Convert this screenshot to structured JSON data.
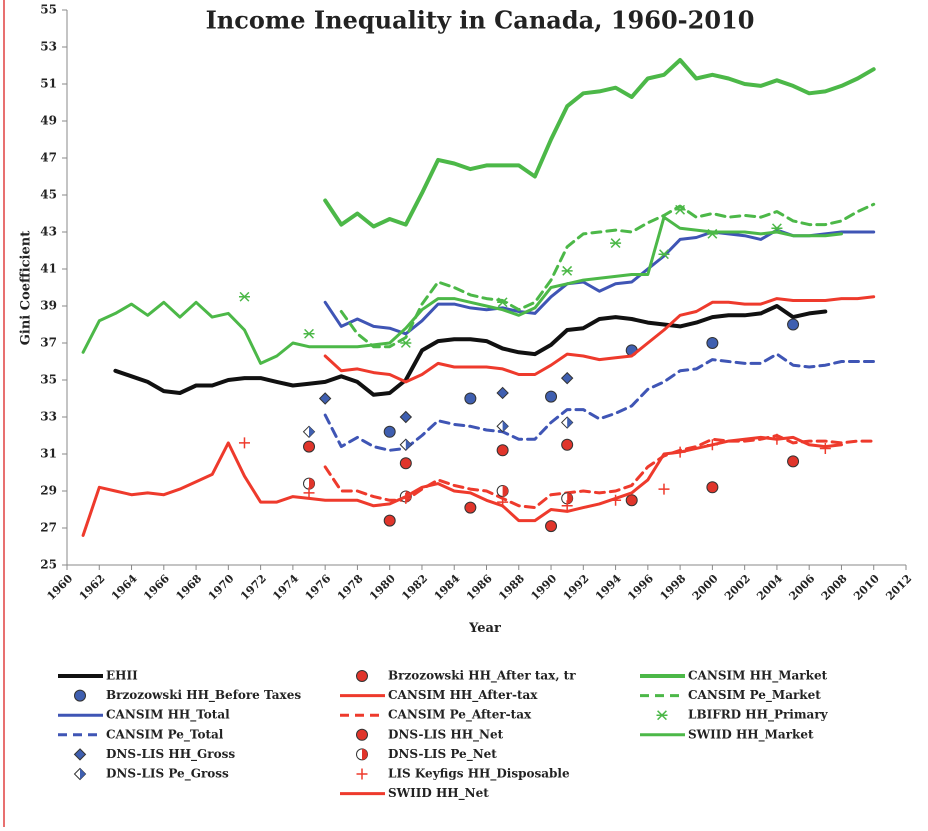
{
  "chart_data": {
    "type": "line",
    "title": "Income Inequality in Canada, 1960-2010",
    "x_label": "Year",
    "y_label": "Gini Coefficient",
    "xlim": [
      1960,
      2012
    ],
    "ylim": [
      25,
      55
    ],
    "xticks": [
      1960,
      1962,
      1964,
      1966,
      1968,
      1970,
      1972,
      1974,
      1976,
      1978,
      1980,
      1982,
      1984,
      1986,
      1988,
      1990,
      1992,
      1994,
      1996,
      1998,
      2000,
      2002,
      2004,
      2006,
      2008,
      2010,
      2012
    ],
    "yticks": [
      25,
      27,
      29,
      31,
      33,
      35,
      37,
      39,
      41,
      43,
      45,
      47,
      49,
      51,
      53,
      55
    ],
    "series": [
      {
        "name": "EHII",
        "color": "#111111",
        "style": "line",
        "width": 4,
        "x": [
          1963,
          1964,
          1965,
          1966,
          1967,
          1968,
          1969,
          1970,
          1971,
          1972,
          1973,
          1974,
          1975,
          1976,
          1977,
          1978,
          1979,
          1980,
          1981,
          1982,
          1983,
          1984,
          1985,
          1986,
          1987,
          1988,
          1989,
          1990,
          1991,
          1992,
          1993,
          1994,
          1995,
          1996,
          1997,
          1998,
          1999,
          2000,
          2001,
          2002,
          2003,
          2004,
          2005,
          2006,
          2007
        ],
        "values": [
          35.5,
          35.2,
          34.9,
          34.4,
          34.3,
          34.7,
          34.7,
          35.0,
          35.1,
          35.1,
          34.9,
          34.7,
          34.8,
          34.9,
          35.2,
          34.9,
          34.2,
          34.3,
          35.0,
          36.6,
          37.1,
          37.2,
          37.2,
          37.1,
          36.7,
          36.5,
          36.4,
          36.9,
          37.7,
          37.8,
          38.3,
          38.4,
          38.3,
          38.1,
          38.0,
          37.9,
          38.1,
          38.4,
          38.5,
          38.5,
          38.6,
          39.0,
          38.4,
          38.6,
          38.7
        ]
      },
      {
        "name": "Brzozowski HH_Before Taxes",
        "color": "#3f5fb0",
        "style": "marker",
        "marker": "circle",
        "x": [
          1980,
          1985,
          1990,
          1995,
          2000,
          2005
        ],
        "values": [
          32.2,
          34.0,
          34.1,
          36.6,
          37.0,
          38.0
        ]
      },
      {
        "name": "CANSIM HH_Total",
        "color": "#3f55b5",
        "style": "line",
        "width": 3,
        "x": [
          1976,
          1977,
          1978,
          1979,
          1980,
          1981,
          1982,
          1983,
          1984,
          1985,
          1986,
          1987,
          1988,
          1989,
          1990,
          1991,
          1992,
          1993,
          1994,
          1995,
          1996,
          1997,
          1998,
          1999,
          2000,
          2001,
          2002,
          2003,
          2004,
          2005,
          2006,
          2007,
          2008,
          2009,
          2010
        ],
        "values": [
          39.2,
          37.9,
          38.3,
          37.9,
          37.8,
          37.5,
          38.2,
          39.1,
          39.1,
          38.9,
          38.8,
          38.9,
          38.7,
          38.6,
          39.5,
          40.2,
          40.3,
          39.8,
          40.2,
          40.3,
          41.0,
          41.7,
          42.6,
          42.7,
          43.0,
          42.9,
          42.8,
          42.6,
          43.1,
          42.8,
          42.8,
          42.9,
          43.0,
          43.0,
          43.0
        ]
      },
      {
        "name": "CANSIM Pe_Total",
        "color": "#3f55b5",
        "style": "dashed",
        "width": 3,
        "x": [
          1976,
          1977,
          1978,
          1979,
          1980,
          1981,
          1982,
          1983,
          1984,
          1985,
          1986,
          1987,
          1988,
          1989,
          1990,
          1991,
          1992,
          1993,
          1994,
          1995,
          1996,
          1997,
          1998,
          1999,
          2000,
          2001,
          2002,
          2003,
          2004,
          2005,
          2006,
          2007,
          2008,
          2009,
          2010
        ],
        "values": [
          33.1,
          31.4,
          31.9,
          31.4,
          31.2,
          31.3,
          32.0,
          32.8,
          32.6,
          32.5,
          32.3,
          32.2,
          31.8,
          31.8,
          32.7,
          33.4,
          33.4,
          32.9,
          33.2,
          33.6,
          34.5,
          34.9,
          35.5,
          35.6,
          36.1,
          36.0,
          35.9,
          35.9,
          36.4,
          35.8,
          35.7,
          35.8,
          36.0,
          36.0,
          36.0
        ]
      },
      {
        "name": "DNS-LIS HH_Gross",
        "color": "#3f5fb0",
        "style": "marker",
        "marker": "diamond",
        "x": [
          1976,
          1981,
          1987,
          1991
        ],
        "values": [
          34.0,
          33.0,
          34.3,
          35.1
        ]
      },
      {
        "name": "DNS-LIS Pe_Gross",
        "color": "#3f5fb0",
        "style": "marker",
        "marker": "half-diamond",
        "x": [
          1975,
          1981,
          1987,
          1991
        ],
        "values": [
          32.2,
          31.5,
          32.5,
          32.7
        ]
      },
      {
        "name": "Brzozowski HH_After tax, tr",
        "color": "#e0352b",
        "style": "marker",
        "marker": "circle",
        "x": [
          1980,
          1985,
          1990,
          1995,
          2000,
          2005
        ],
        "values": [
          27.4,
          28.1,
          27.1,
          28.5,
          29.2,
          30.6
        ]
      },
      {
        "name": "CANSIM HH_After-tax",
        "color": "#ee3a2c",
        "style": "line",
        "width": 3,
        "x": [
          1976,
          1977,
          1978,
          1979,
          1980,
          1981,
          1982,
          1983,
          1984,
          1985,
          1986,
          1987,
          1988,
          1989,
          1990,
          1991,
          1992,
          1993,
          1994,
          1995,
          1996,
          1997,
          1998,
          1999,
          2000,
          2001,
          2002,
          2003,
          2004,
          2005,
          2006,
          2007,
          2008,
          2009,
          2010
        ],
        "values": [
          36.3,
          35.5,
          35.6,
          35.4,
          35.3,
          34.9,
          35.3,
          35.9,
          35.7,
          35.7,
          35.7,
          35.6,
          35.3,
          35.3,
          35.8,
          36.4,
          36.3,
          36.1,
          36.2,
          36.3,
          37.0,
          37.7,
          38.5,
          38.7,
          39.2,
          39.2,
          39.1,
          39.1,
          39.4,
          39.3,
          39.3,
          39.3,
          39.4,
          39.4,
          39.5
        ]
      },
      {
        "name": "CANSIM Pe_After-tax",
        "color": "#ee3a2c",
        "style": "dashed",
        "width": 3,
        "x": [
          1976,
          1977,
          1978,
          1979,
          1980,
          1981,
          1982,
          1983,
          1984,
          1985,
          1986,
          1987,
          1988,
          1989,
          1990,
          1991,
          1992,
          1993,
          1994,
          1995,
          1996,
          1997,
          1998,
          1999,
          2000,
          2001,
          2002,
          2003,
          2004,
          2005,
          2006,
          2007,
          2008,
          2009,
          2010
        ],
        "values": [
          30.3,
          29.0,
          29.0,
          28.7,
          28.5,
          28.5,
          29.1,
          29.6,
          29.3,
          29.1,
          29.0,
          28.6,
          28.2,
          28.1,
          28.8,
          28.9,
          29.0,
          28.9,
          29.0,
          29.3,
          30.3,
          30.9,
          31.2,
          31.4,
          31.8,
          31.7,
          31.7,
          31.8,
          32.0,
          31.6,
          31.7,
          31.7,
          31.6,
          31.7,
          31.7
        ]
      },
      {
        "name": "DNS-LIS HH_Net",
        "color": "#e0352b",
        "style": "marker",
        "marker": "diamond-circle",
        "x": [
          1975,
          1981,
          1987,
          1991
        ],
        "values": [
          31.4,
          30.5,
          31.2,
          31.5
        ]
      },
      {
        "name": "DNS-LIS Pe_Net",
        "color": "#e0352b",
        "style": "marker",
        "marker": "half-circle",
        "x": [
          1975,
          1981,
          1987,
          1991
        ],
        "values": [
          29.4,
          28.7,
          29.0,
          28.6
        ]
      },
      {
        "name": "LIS Keyfigs HH_Disposable",
        "color": "#ee3a2c",
        "style": "marker",
        "marker": "plus",
        "x": [
          1971,
          1975,
          1981,
          1987,
          1991,
          1994,
          1997,
          1998,
          2000,
          2004,
          2007
        ],
        "values": [
          31.6,
          28.9,
          28.6,
          28.4,
          28.2,
          28.5,
          29.1,
          31.1,
          31.5,
          31.8,
          31.3
        ]
      },
      {
        "name": "SWIID HH_Net",
        "color": "#ee3a2c",
        "style": "line",
        "width": 3,
        "x": [
          1961,
          1962,
          1963,
          1964,
          1965,
          1966,
          1967,
          1968,
          1969,
          1970,
          1971,
          1972,
          1973,
          1974,
          1975,
          1976,
          1977,
          1978,
          1979,
          1980,
          1981,
          1982,
          1983,
          1984,
          1985,
          1986,
          1987,
          1988,
          1989,
          1990,
          1991,
          1992,
          1993,
          1994,
          1995,
          1996,
          1997,
          1998,
          1999,
          2000,
          2001,
          2002,
          2003,
          2004,
          2005,
          2006,
          2007,
          2008
        ],
        "values": [
          26.6,
          29.2,
          29.0,
          28.8,
          28.9,
          28.8,
          29.1,
          29.5,
          29.9,
          31.6,
          29.8,
          28.4,
          28.4,
          28.7,
          28.6,
          28.5,
          28.5,
          28.5,
          28.2,
          28.3,
          28.7,
          29.2,
          29.4,
          29.0,
          28.9,
          28.5,
          28.2,
          27.4,
          27.4,
          28.0,
          27.9,
          28.1,
          28.3,
          28.6,
          28.9,
          29.6,
          31.0,
          31.1,
          31.3,
          31.5,
          31.7,
          31.8,
          31.9,
          31.8,
          31.9,
          31.5,
          31.4,
          31.5
        ]
      },
      {
        "name": "CANSIM HH_Market",
        "color": "#4cb848",
        "style": "line",
        "width": 4,
        "x": [
          1976,
          1977,
          1978,
          1979,
          1980,
          1981,
          1982,
          1983,
          1984,
          1985,
          1986,
          1987,
          1988,
          1989,
          1990,
          1991,
          1992,
          1993,
          1994,
          1995,
          1996,
          1997,
          1998,
          1999,
          2000,
          2001,
          2002,
          2003,
          2004,
          2005,
          2006,
          2007,
          2008,
          2009,
          2010
        ],
        "values": [
          44.7,
          43.4,
          44.0,
          43.3,
          43.7,
          43.4,
          45.1,
          46.9,
          46.7,
          46.4,
          46.6,
          46.6,
          46.6,
          46.0,
          48.0,
          49.8,
          50.5,
          50.6,
          50.8,
          50.3,
          51.3,
          51.5,
          52.3,
          51.3,
          51.5,
          51.3,
          51.0,
          50.9,
          51.2,
          50.9,
          50.5,
          50.6,
          50.9,
          51.3,
          51.8
        ]
      },
      {
        "name": "CANSIM Pe_Market",
        "color": "#4cb848",
        "style": "dashed",
        "width": 3,
        "x": [
          1977,
          1978,
          1979,
          1980,
          1981,
          1982,
          1983,
          1984,
          1985,
          1986,
          1987,
          1988,
          1989,
          1990,
          1991,
          1992,
          1993,
          1994,
          1995,
          1996,
          1997,
          1998,
          1999,
          2000,
          2001,
          2002,
          2003,
          2004,
          2005,
          2006,
          2007,
          2008,
          2009,
          2010
        ],
        "values": [
          38.7,
          37.5,
          36.8,
          36.8,
          37.3,
          39.1,
          40.3,
          40.0,
          39.6,
          39.4,
          39.3,
          38.8,
          39.2,
          40.4,
          42.2,
          42.9,
          43.0,
          43.1,
          43.0,
          43.5,
          43.9,
          44.4,
          43.8,
          44.0,
          43.8,
          43.9,
          43.8,
          44.1,
          43.6,
          43.4,
          43.4,
          43.6,
          44.1,
          44.5
        ]
      },
      {
        "name": "LBIFRD HH_Primary",
        "color": "#4cb848",
        "style": "marker",
        "marker": "asterisk",
        "x": [
          1971,
          1975,
          1981,
          1987,
          1991,
          1994,
          1997,
          1998,
          2000,
          2004
        ],
        "values": [
          39.5,
          37.5,
          37.0,
          39.2,
          40.9,
          42.4,
          41.8,
          44.2,
          42.9,
          43.2
        ]
      },
      {
        "name": "SWIID HH_Market",
        "color": "#4cb848",
        "style": "line",
        "width": 3,
        "x": [
          1961,
          1962,
          1963,
          1964,
          1965,
          1966,
          1967,
          1968,
          1969,
          1970,
          1971,
          1972,
          1973,
          1974,
          1975,
          1976,
          1977,
          1978,
          1979,
          1980,
          1981,
          1982,
          1983,
          1984,
          1985,
          1986,
          1987,
          1988,
          1989,
          1990,
          1991,
          1992,
          1993,
          1994,
          1995,
          1996,
          1997,
          1998,
          1999,
          2000,
          2001,
          2002,
          2003,
          2004,
          2005,
          2006,
          2007,
          2008
        ],
        "values": [
          36.5,
          38.2,
          38.6,
          39.1,
          38.5,
          39.2,
          38.4,
          39.2,
          38.4,
          38.6,
          37.7,
          35.9,
          36.3,
          37.0,
          36.8,
          36.8,
          36.8,
          36.8,
          36.9,
          37.0,
          37.8,
          38.8,
          39.4,
          39.4,
          39.2,
          39.0,
          38.8,
          38.5,
          38.9,
          40.0,
          40.2,
          40.4,
          40.5,
          40.6,
          40.7,
          40.7,
          43.8,
          43.2,
          43.1,
          43.0,
          43.0,
          43.0,
          42.9,
          43.0,
          42.8,
          42.8,
          42.8,
          42.9
        ]
      }
    ]
  }
}
